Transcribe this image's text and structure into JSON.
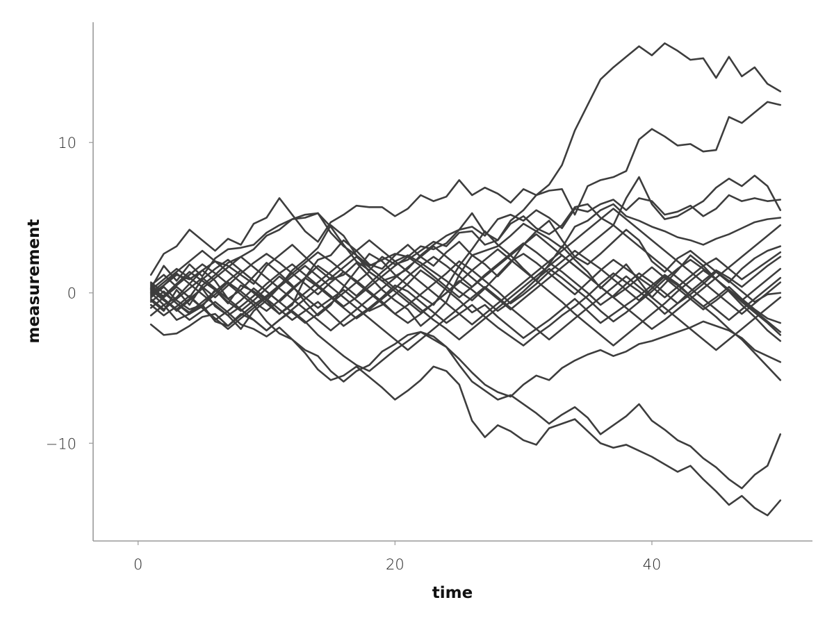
{
  "chart_data": {
    "type": "line",
    "title": "",
    "xlabel": "time",
    "ylabel": "measurement",
    "xlim": [
      -3.5,
      52.5
    ],
    "ylim": [
      -16.5,
      18.0
    ],
    "xticks": [
      0,
      20,
      40
    ],
    "xtick_labels": [
      "0",
      "20",
      "40"
    ],
    "yticks": [
      -10,
      0,
      10
    ],
    "ytick_labels": [
      "−10",
      "0",
      "10"
    ],
    "grid": false,
    "legend": "none",
    "line_color": "#3d3d3d",
    "axis_color": "#999999",
    "x": [
      1,
      2,
      3,
      4,
      5,
      6,
      7,
      8,
      9,
      10,
      11,
      12,
      13,
      14,
      15,
      16,
      17,
      18,
      19,
      20,
      21,
      22,
      23,
      24,
      25,
      26,
      27,
      28,
      29,
      30,
      31,
      32,
      33,
      34,
      35,
      36,
      37,
      38,
      39,
      40,
      41,
      42,
      43,
      44,
      45,
      46,
      47,
      48,
      49,
      50
    ],
    "series": [
      {
        "values": [
          1.2,
          2.6,
          3.1,
          4.2,
          3.5,
          2.8,
          3.6,
          3.2,
          4.6,
          5.0,
          6.3,
          5.2,
          4.1,
          3.4,
          4.7,
          5.2,
          5.8,
          5.7,
          5.7,
          5.1,
          5.6,
          6.5,
          6.1,
          6.4,
          7.5,
          6.5,
          7.0,
          6.6,
          6.0,
          6.9,
          6.5,
          7.2,
          8.5,
          10.8,
          12.5,
          14.2,
          15.0,
          15.7,
          16.4,
          15.8,
          16.6,
          16.1,
          15.5,
          15.6,
          14.3,
          15.7,
          14.4,
          15.0,
          13.9,
          13.4
        ]
      },
      {
        "values": [
          0.3,
          1.8,
          0.8,
          1.9,
          1.1,
          2.3,
          2.9,
          3.0,
          3.2,
          4.0,
          4.5,
          4.9,
          5.2,
          5.3,
          4.4,
          3.2,
          2.1,
          1.5,
          2.4,
          1.9,
          2.2,
          2.8,
          3.4,
          3.1,
          4.0,
          4.1,
          3.2,
          3.5,
          4.8,
          5.5,
          6.5,
          6.8,
          6.9,
          5.2,
          7.1,
          7.5,
          7.7,
          8.1,
          10.2,
          10.9,
          10.4,
          9.8,
          9.9,
          9.4,
          9.5,
          11.7,
          11.3,
          12.0,
          12.7,
          12.5
        ]
      },
      {
        "values": [
          -0.5,
          -1.2,
          0.2,
          -0.8,
          0.5,
          1.2,
          2.0,
          2.4,
          2.9,
          3.8,
          4.2,
          4.9,
          5.0,
          5.3,
          4.0,
          3.1,
          2.5,
          1.8,
          2.2,
          2.6,
          2.4,
          3.1,
          2.9,
          3.3,
          4.2,
          4.4,
          3.8,
          4.9,
          5.2,
          4.8,
          5.5,
          5.0,
          4.3,
          5.6,
          5.4,
          5.9,
          6.2,
          5.5,
          6.3,
          6.1,
          5.2,
          5.4,
          5.8,
          5.1,
          5.6,
          6.5,
          6.1,
          6.3,
          6.1,
          6.2
        ]
      },
      {
        "values": [
          0.6,
          -0.4,
          -1.2,
          -0.5,
          0.3,
          -0.9,
          -1.5,
          -2.4,
          -1.2,
          -0.5,
          0.4,
          1.5,
          2.2,
          3.0,
          4.5,
          3.8,
          2.5,
          1.4,
          0.8,
          1.1,
          1.6,
          2.5,
          3.2,
          3.8,
          4.2,
          5.3,
          4.0,
          3.5,
          4.6,
          5.1,
          4.3,
          3.9,
          4.5,
          5.7,
          5.9,
          5.0,
          4.5,
          6.3,
          7.7,
          5.9,
          4.9,
          5.1,
          5.6,
          6.1,
          7.0,
          7.6,
          7.1,
          7.8,
          7.1,
          5.5
        ]
      },
      {
        "values": [
          -1.5,
          -0.8,
          -1.8,
          -1.4,
          -0.9,
          0.2,
          -0.7,
          0.5,
          0.1,
          -0.5,
          -1.4,
          -0.8,
          1.0,
          2.2,
          2.5,
          3.5,
          2.8,
          1.9,
          1.6,
          2.5,
          3.2,
          2.4,
          1.8,
          2.7,
          3.4,
          2.5,
          2.8,
          3.1,
          3.8,
          4.6,
          4.1,
          3.6,
          3.0,
          4.4,
          4.8,
          5.5,
          5.9,
          5.1,
          4.8,
          4.4,
          4.1,
          3.7,
          3.5,
          3.2,
          3.6,
          3.9,
          4.3,
          4.7,
          4.9,
          5.0
        ]
      },
      {
        "values": [
          -0.1,
          0.5,
          1.2,
          0.9,
          1.5,
          2.1,
          1.8,
          1.2,
          0.6,
          1.8,
          2.5,
          3.2,
          2.4,
          1.6,
          0.9,
          1.2,
          2.0,
          1.1,
          0.2,
          -0.5,
          -1.1,
          -2.2,
          -1.5,
          -0.6,
          1.2,
          2.5,
          1.9,
          1.1,
          2.0,
          3.2,
          4.1,
          4.8,
          3.5,
          2.4,
          1.9,
          2.6,
          3.4,
          4.2,
          3.5,
          2.1,
          1.4,
          2.3,
          2.8,
          2.1,
          1.4,
          0.7,
          1.6,
          2.3,
          2.8,
          3.1
        ]
      },
      {
        "values": [
          0.0,
          -0.8,
          -0.3,
          0.6,
          1.5,
          0.8,
          -0.4,
          0.2,
          1.1,
          2.0,
          1.3,
          0.5,
          -0.6,
          -1.5,
          -0.8,
          0.4,
          1.5,
          2.6,
          2.1,
          1.2,
          0.5,
          -0.2,
          -0.8,
          0.4,
          1.8,
          2.9,
          4.1,
          3.2,
          2.5,
          1.6,
          0.8,
          1.9,
          3.1,
          2.2,
          1.4,
          0.3,
          1.1,
          1.9,
          0.8,
          -0.3,
          0.6,
          1.5,
          2.5,
          1.8,
          0.9,
          0.1,
          -0.8,
          -1.6,
          -2.5,
          -3.2
        ]
      },
      {
        "values": [
          -2.1,
          -2.8,
          -2.7,
          -2.2,
          -1.6,
          -1.4,
          -2.2,
          -1.5,
          -0.8,
          -1.9,
          -2.7,
          -3.1,
          -3.8,
          -4.2,
          -5.2,
          -5.9,
          -5.2,
          -4.8,
          -3.9,
          -3.4,
          -2.8,
          -2.6,
          -2.9,
          -3.6,
          -4.4,
          -5.3,
          -6.1,
          -6.6,
          -6.9,
          -6.1,
          -5.5,
          -5.8,
          -5.0,
          -4.5,
          -4.1,
          -3.8,
          -4.2,
          -3.9,
          -3.4,
          -3.2,
          -2.9,
          -2.6,
          -2.3,
          -1.9,
          -2.2,
          -2.5,
          -3.0,
          -3.8,
          -4.2,
          -4.6
        ]
      },
      {
        "values": [
          0.2,
          -0.5,
          -1.1,
          -1.8,
          -1.2,
          -0.6,
          -1.3,
          -2.1,
          -2.4,
          -2.9,
          -2.3,
          -3.1,
          -4.0,
          -5.1,
          -5.8,
          -5.5,
          -4.9,
          -5.6,
          -6.3,
          -7.1,
          -6.5,
          -5.8,
          -4.9,
          -5.2,
          -6.1,
          -8.5,
          -9.6,
          -8.8,
          -9.2,
          -9.8,
          -10.1,
          -9.0,
          -8.7,
          -8.4,
          -9.2,
          -10.0,
          -10.3,
          -10.1,
          -10.5,
          -10.9,
          -11.4,
          -11.9,
          -11.5,
          -12.4,
          -13.2,
          -14.1,
          -13.5,
          -14.3,
          -14.8,
          -13.8
        ]
      },
      {
        "values": [
          -0.3,
          0.4,
          -0.5,
          -1.1,
          -0.8,
          -1.9,
          -2.2,
          -1.4,
          -1.8,
          -2.5,
          -1.8,
          -1.2,
          -1.9,
          -2.8,
          -3.5,
          -4.2,
          -4.8,
          -5.2,
          -4.5,
          -3.8,
          -3.2,
          -2.6,
          -3.1,
          -3.6,
          -4.8,
          -5.9,
          -6.5,
          -7.1,
          -6.8,
          -7.4,
          -8.0,
          -8.7,
          -8.1,
          -7.6,
          -8.3,
          -9.4,
          -8.8,
          -8.2,
          -7.4,
          -8.5,
          -9.1,
          -9.8,
          -10.2,
          -11.0,
          -11.6,
          -12.4,
          -13.0,
          -12.1,
          -11.5,
          -9.4
        ]
      },
      {
        "values": [
          0.1,
          -0.2,
          0.6,
          1.4,
          0.8,
          0.2,
          -0.6,
          -1.2,
          -0.5,
          0.3,
          1.1,
          0.4,
          -0.3,
          -1.0,
          -0.4,
          0.2,
          -0.5,
          -1.2,
          -0.8,
          -0.1,
          0.6,
          1.5,
          0.9,
          0.2,
          -0.5,
          -1.3,
          -0.8,
          -1.6,
          -2.3,
          -3.0,
          -2.4,
          -1.8,
          -1.1,
          -0.4,
          -1.2,
          -2.0,
          -1.4,
          -0.8,
          -0.2,
          0.5,
          1.2,
          0.6,
          -0.2,
          -0.9,
          -1.6,
          -2.4,
          -3.1,
          -4.0,
          -4.9,
          -5.8
        ]
      },
      {
        "values": [
          0.5,
          1.2,
          0.4,
          -0.3,
          0.9,
          1.6,
          2.2,
          1.5,
          0.8,
          0.1,
          -0.6,
          0.2,
          1.0,
          1.8,
          1.2,
          0.5,
          -0.2,
          0.6,
          1.4,
          2.1,
          2.5,
          2.0,
          1.4,
          0.8,
          0.1,
          -0.5,
          0.3,
          1.2,
          2.1,
          2.6,
          2.0,
          1.3,
          0.6,
          -0.1,
          0.7,
          1.5,
          2.2,
          1.6,
          1.0,
          0.4,
          -0.3,
          0.4,
          1.1,
          1.8,
          2.3,
          1.6,
          0.9,
          1.5,
          2.1,
          2.7
        ]
      },
      {
        "values": [
          -0.8,
          -1.5,
          -0.9,
          -0.2,
          -1.0,
          -1.8,
          -1.2,
          -0.5,
          0.3,
          -0.4,
          -1.1,
          -1.8,
          -1.2,
          -0.6,
          -1.4,
          -2.2,
          -1.6,
          -1.0,
          -0.3,
          0.5,
          0.1,
          -0.6,
          -1.3,
          -2.0,
          -1.4,
          -0.8,
          -1.6,
          -2.3,
          -2.9,
          -3.5,
          -2.8,
          -2.2,
          -1.5,
          -0.9,
          -0.2,
          0.6,
          1.3,
          0.7,
          0.1,
          -0.6,
          -1.4,
          -0.7,
          0.1,
          0.8,
          1.5,
          1.0,
          0.4,
          1.1,
          1.8,
          2.4
        ]
      },
      {
        "values": [
          0.2,
          0.9,
          1.6,
          1.0,
          0.4,
          -0.3,
          0.5,
          1.3,
          2.0,
          2.6,
          2.0,
          1.3,
          0.6,
          -0.1,
          0.7,
          1.4,
          0.8,
          0.1,
          -0.6,
          -1.4,
          -0.8,
          -0.1,
          0.6,
          1.3,
          2.1,
          1.5,
          0.8,
          0.1,
          -0.7,
          -0.1,
          0.6,
          1.4,
          2.1,
          2.8,
          2.2,
          1.6,
          0.9,
          0.2,
          -0.5,
          0.3,
          1.1,
          0.5,
          -0.2,
          -0.9,
          -0.3,
          0.4,
          -0.4,
          -1.1,
          -1.7,
          -2.0
        ]
      },
      {
        "values": [
          -0.6,
          0.1,
          -0.7,
          -1.4,
          -0.8,
          -0.1,
          0.7,
          0.1,
          -0.6,
          -1.2,
          -0.5,
          0.3,
          1.0,
          0.4,
          -0.3,
          -1.0,
          -1.7,
          -1.1,
          -0.4,
          0.3,
          1.1,
          1.8,
          2.4,
          1.8,
          1.1,
          0.4,
          1.2,
          1.9,
          2.6,
          3.3,
          2.7,
          2.0,
          1.4,
          0.7,
          0.0,
          -0.8,
          -0.2,
          0.6,
          1.3,
          0.7,
          0.0,
          -0.7,
          -0.1,
          0.6,
          1.4,
          0.8,
          0.1,
          -0.6,
          -0.1,
          0.0
        ]
      },
      {
        "values": [
          0.4,
          -0.3,
          0.5,
          1.2,
          1.9,
          1.3,
          0.6,
          -0.1,
          -0.8,
          -0.2,
          0.5,
          1.3,
          2.0,
          2.7,
          2.1,
          1.4,
          0.7,
          0.0,
          -0.7,
          -1.4,
          -2.0,
          -1.4,
          -0.7,
          0.0,
          0.8,
          0.2,
          -0.5,
          -1.2,
          -0.6,
          0.1,
          0.9,
          1.6,
          1.0,
          0.3,
          -0.4,
          -1.2,
          -1.9,
          -1.3,
          -0.6,
          0.1,
          0.9,
          1.6,
          2.2,
          1.6,
          0.9,
          0.2,
          -0.5,
          -1.2,
          -1.9,
          -2.6
        ]
      },
      {
        "values": [
          -0.2,
          0.5,
          1.3,
          0.6,
          -0.1,
          -0.8,
          -1.5,
          -0.9,
          -0.2,
          0.6,
          1.3,
          1.9,
          1.2,
          0.5,
          -0.2,
          -0.9,
          -0.3,
          0.4,
          1.1,
          1.8,
          2.4,
          1.8,
          1.1,
          0.4,
          -0.3,
          0.4,
          1.1,
          1.8,
          2.5,
          3.2,
          3.9,
          3.2,
          2.5,
          1.8,
          1.1,
          0.4,
          -0.3,
          0.3,
          1.0,
          1.7,
          1.0,
          0.3,
          -0.4,
          -1.1,
          -0.5,
          0.2,
          -0.6,
          -1.3,
          -2.0,
          -2.8
        ]
      },
      {
        "values": [
          0.7,
          0.0,
          -0.7,
          -1.3,
          -0.6,
          0.1,
          0.8,
          1.5,
          0.8,
          0.1,
          -0.6,
          -1.3,
          -2.0,
          -1.4,
          -0.7,
          0.0,
          0.7,
          1.4,
          0.8,
          0.1,
          -0.6,
          -1.3,
          -0.7,
          0.0,
          0.7,
          1.5,
          2.2,
          2.9,
          2.2,
          1.5,
          0.8,
          0.1,
          -0.6,
          -1.4,
          -2.1,
          -2.8,
          -3.5,
          -2.8,
          -2.1,
          -1.4,
          -0.7,
          0.1,
          0.8,
          1.5,
          0.9,
          0.2,
          -0.5,
          0.2,
          0.9,
          1.6
        ]
      },
      {
        "values": [
          -0.4,
          -1.1,
          -0.4,
          0.3,
          1.0,
          0.3,
          -0.4,
          -1.1,
          -1.8,
          -2.5,
          -1.8,
          -1.1,
          -0.4,
          0.3,
          1.0,
          1.7,
          2.4,
          1.7,
          1.0,
          0.3,
          -0.4,
          -1.1,
          -1.8,
          -2.4,
          -3.1,
          -2.4,
          -1.7,
          -1.0,
          -0.3,
          0.4,
          1.1,
          1.8,
          2.5,
          1.8,
          1.1,
          0.4,
          -0.3,
          -1.0,
          -1.7,
          -2.4,
          -1.8,
          -1.1,
          -0.4,
          0.3,
          1.0,
          1.7,
          2.4,
          3.1,
          3.8,
          4.5
        ]
      },
      {
        "values": [
          0.0,
          0.7,
          1.4,
          2.1,
          2.8,
          2.1,
          1.4,
          0.7,
          0.0,
          -0.7,
          -1.4,
          -0.7,
          0.0,
          0.7,
          1.4,
          2.1,
          2.8,
          3.5,
          2.8,
          2.1,
          1.4,
          0.7,
          0.0,
          -0.7,
          -1.4,
          -2.1,
          -1.4,
          -0.7,
          0.0,
          0.7,
          1.4,
          2.1,
          2.8,
          3.5,
          4.2,
          4.9,
          5.6,
          4.9,
          4.2,
          3.5,
          2.8,
          2.1,
          1.4,
          0.7,
          0.0,
          -0.7,
          -1.4,
          -0.7,
          0.0,
          0.7
        ]
      },
      {
        "values": [
          -1.0,
          -0.3,
          0.4,
          -0.3,
          -1.0,
          -1.7,
          -2.4,
          -1.7,
          -1.0,
          -0.3,
          0.4,
          1.1,
          1.8,
          1.1,
          0.4,
          -0.3,
          -1.0,
          -1.7,
          -2.4,
          -3.1,
          -3.8,
          -3.1,
          -2.4,
          -1.7,
          -1.0,
          -0.3,
          0.4,
          -0.3,
          -1.0,
          -1.7,
          -2.4,
          -3.1,
          -2.4,
          -1.7,
          -1.0,
          -0.3,
          0.4,
          1.1,
          0.4,
          -0.3,
          -1.0,
          -1.7,
          -2.4,
          -3.1,
          -3.8,
          -3.1,
          -2.4,
          -1.7,
          -1.0,
          -0.3
        ]
      },
      {
        "values": [
          0.3,
          -0.4,
          -1.1,
          -0.4,
          0.3,
          1.0,
          1.7,
          2.4,
          1.7,
          1.0,
          0.3,
          -0.4,
          -1.1,
          -1.8,
          -2.5,
          -1.8,
          -1.1,
          -0.4,
          0.3,
          1.0,
          1.7,
          2.4,
          3.1,
          2.4,
          1.7,
          1.0,
          0.3,
          -0.4,
          -1.1,
          -0.4,
          0.3,
          1.0,
          1.7,
          2.4,
          3.1,
          3.8,
          4.5,
          3.8,
          3.1,
          2.4,
          1.7,
          1.0,
          0.3,
          -0.4,
          -1.1,
          -1.8,
          -1.1,
          -0.4,
          0.3,
          1.0
        ]
      }
    ]
  }
}
